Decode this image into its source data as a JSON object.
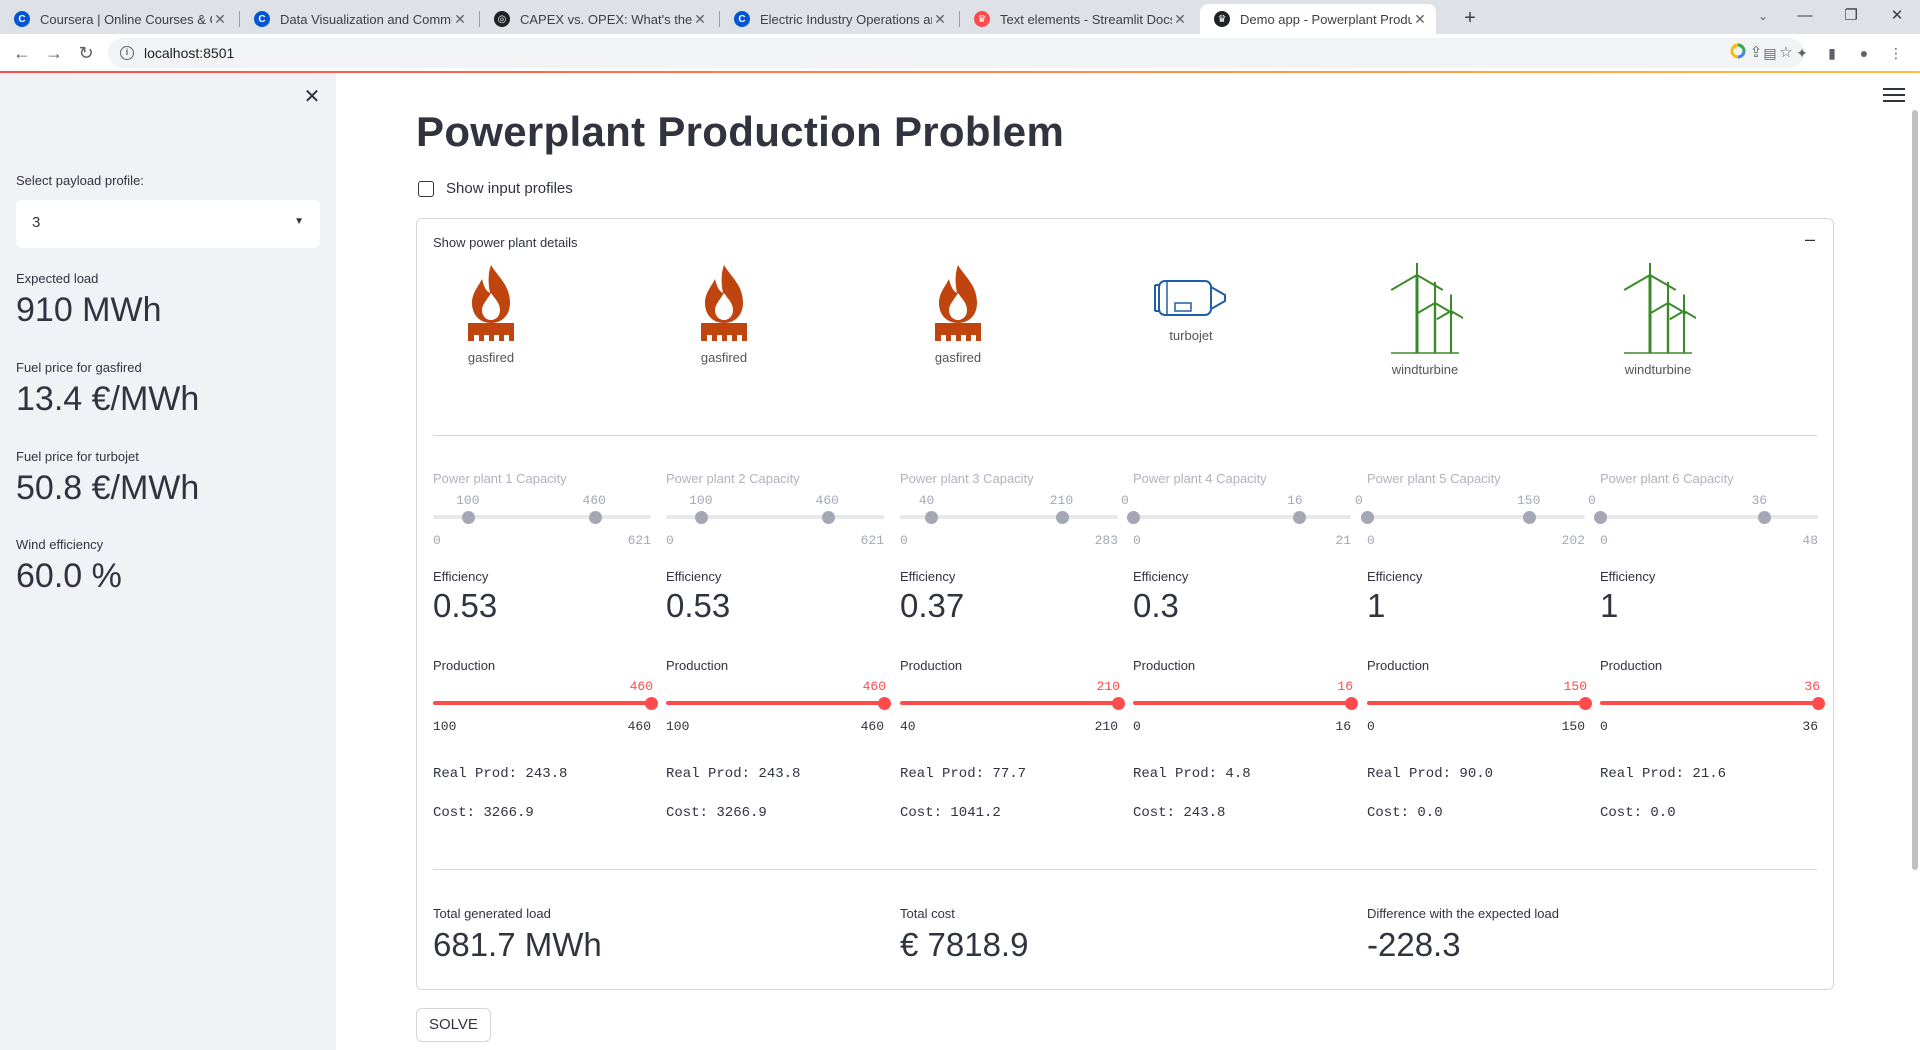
{
  "browser": {
    "tabs": [
      {
        "title": "Coursera | Online Courses & Credentials",
        "favicon": "coursera-icon",
        "color": "#0056d2"
      },
      {
        "title": "Data Visualization and Communication",
        "favicon": "coursera-icon",
        "color": "#0056d2"
      },
      {
        "title": "CAPEX vs. OPEX: What's the Difference",
        "favicon": "globe-icon",
        "color": "#202124"
      },
      {
        "title": "Electric Industry Operations and Markets",
        "favicon": "coursera-icon",
        "color": "#0056d2"
      },
      {
        "title": "Text elements - Streamlit Docs",
        "favicon": "streamlit-icon",
        "color": "#ff4b4b"
      },
      {
        "title": "Demo app - Powerplant Production",
        "favicon": "streamlit-icon",
        "color": "#202124"
      }
    ],
    "url": "localhost:8501"
  },
  "sidebar": {
    "select_label": "Select payload profile:",
    "select_value": "3",
    "metrics": [
      {
        "label": "Expected load",
        "value": "910 MWh"
      },
      {
        "label": "Fuel price for gasfired",
        "value": "13.4 €/MWh"
      },
      {
        "label": "Fuel price for turbojet",
        "value": "50.8 €/MWh"
      },
      {
        "label": "Wind efficiency",
        "value": "60.0 %"
      }
    ]
  },
  "main": {
    "title": "Powerplant Production Problem",
    "checkbox_label": "Show input profiles",
    "expander_label": "Show power plant details",
    "plants": [
      {
        "type": "gasfired",
        "capacity_label": "Power plant 1 Capacity",
        "cap_low": "100",
        "cap_high": "460",
        "cap_min": "0",
        "cap_max": "621",
        "efficiency_label": "Efficiency",
        "efficiency": "0.53",
        "production_label": "Production",
        "prod_value": "460",
        "prod_min": "100",
        "prod_max": "460",
        "real_prod": "Real Prod: 243.8",
        "cost": "Cost: 3266.9",
        "cap_low_frac": 0.161,
        "cap_high_frac": 0.741,
        "prod_frac": 1.0
      },
      {
        "type": "gasfired",
        "capacity_label": "Power plant 2 Capacity",
        "cap_low": "100",
        "cap_high": "460",
        "cap_min": "0",
        "cap_max": "621",
        "efficiency_label": "Efficiency",
        "efficiency": "0.53",
        "production_label": "Production",
        "prod_value": "460",
        "prod_min": "100",
        "prod_max": "460",
        "real_prod": "Real Prod: 243.8",
        "cost": "Cost: 3266.9",
        "cap_low_frac": 0.161,
        "cap_high_frac": 0.741,
        "prod_frac": 1.0
      },
      {
        "type": "gasfired",
        "capacity_label": "Power plant 3 Capacity",
        "cap_low": "40",
        "cap_high": "210",
        "cap_min": "0",
        "cap_max": "283",
        "efficiency_label": "Efficiency",
        "efficiency": "0.37",
        "production_label": "Production",
        "prod_value": "210",
        "prod_min": "40",
        "prod_max": "210",
        "real_prod": "Real Prod: 77.7",
        "cost": "Cost: 1041.2",
        "cap_low_frac": 0.141,
        "cap_high_frac": 0.742,
        "prod_frac": 1.0
      },
      {
        "type": "turbojet",
        "capacity_label": "Power plant 4 Capacity",
        "cap_low": "0",
        "cap_high": "16",
        "cap_min": "0",
        "cap_max": "21",
        "efficiency_label": "Efficiency",
        "efficiency": "0.3",
        "production_label": "Production",
        "prod_value": "16",
        "prod_min": "0",
        "prod_max": "16",
        "real_prod": "Real Prod: 4.8",
        "cost": "Cost: 243.8",
        "cap_low_frac": 0.0,
        "cap_high_frac": 0.762,
        "prod_frac": 1.0
      },
      {
        "type": "windturbine",
        "capacity_label": "Power plant 5 Capacity",
        "cap_low": "0",
        "cap_high": "150",
        "cap_min": "0",
        "cap_max": "202",
        "efficiency_label": "Efficiency",
        "efficiency": "1",
        "production_label": "Production",
        "prod_value": "150",
        "prod_min": "0",
        "prod_max": "150",
        "real_prod": "Real Prod: 90.0",
        "cost": "Cost: 0.0",
        "cap_low_frac": 0.0,
        "cap_high_frac": 0.743,
        "prod_frac": 1.0
      },
      {
        "type": "windturbine",
        "capacity_label": "Power plant 6 Capacity",
        "cap_low": "0",
        "cap_high": "36",
        "cap_min": "0",
        "cap_max": "48",
        "efficiency_label": "Efficiency",
        "efficiency": "1",
        "production_label": "Production",
        "prod_value": "36",
        "prod_min": "0",
        "prod_max": "36",
        "real_prod": "Real Prod: 21.6",
        "cost": "Cost: 0.0",
        "cap_low_frac": 0.0,
        "cap_high_frac": 0.75,
        "prod_frac": 1.0
      }
    ],
    "totals": [
      {
        "label": "Total generated load",
        "value": "681.7 MWh"
      },
      {
        "label": "Total cost",
        "value": "€ 7818.9"
      },
      {
        "label": "Difference with the expected load",
        "value": "-228.3"
      }
    ],
    "solve_label": "SOLVE"
  },
  "colors": {
    "accent": "#ff4b4b",
    "gas": "#c0440e",
    "turbojet": "#1f5fa8",
    "wind": "#3a8a2a",
    "disabled": "#a3a8b4",
    "disabled_track": "#e6e8ec"
  }
}
